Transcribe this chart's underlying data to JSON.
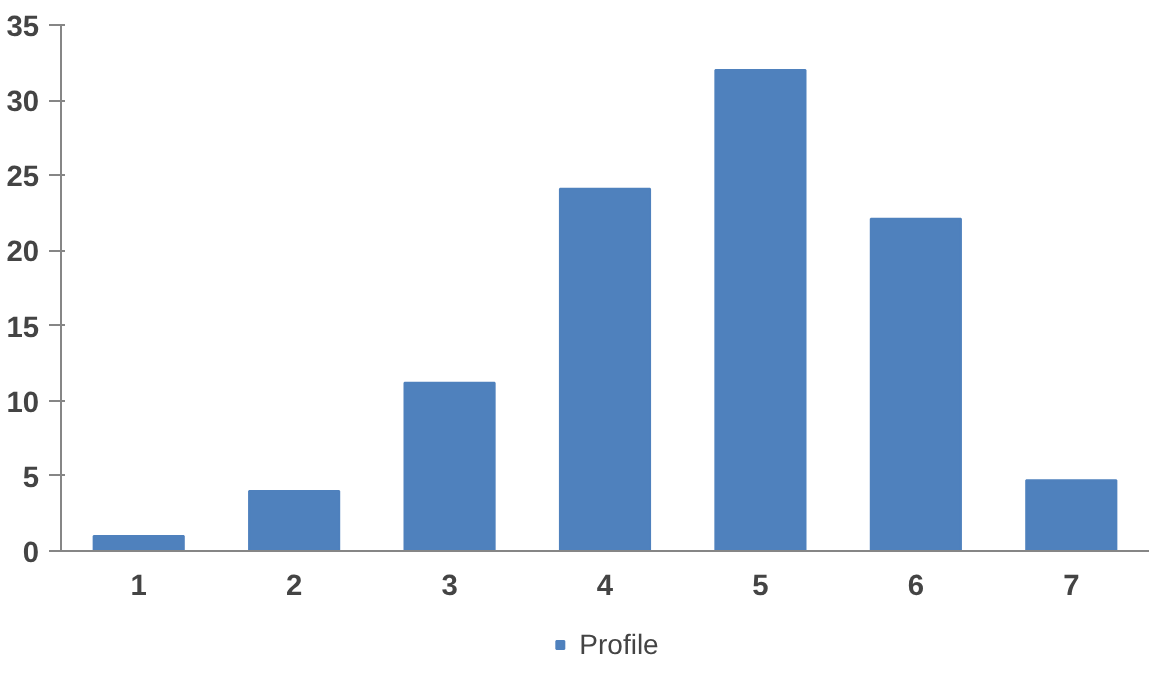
{
  "chart_data": {
    "type": "bar",
    "categories": [
      "1",
      "2",
      "3",
      "4",
      "5",
      "6",
      "7"
    ],
    "series": [
      {
        "name": "Profile",
        "color": "#4f81bd",
        "values": [
          1,
          4,
          11.2,
          24.1,
          32,
          22.1,
          4.7
        ]
      }
    ],
    "ylim": [
      0,
      35
    ],
    "yticks": [
      0,
      5,
      10,
      15,
      20,
      25,
      30,
      35
    ],
    "grid": false,
    "legend": "bottom"
  }
}
